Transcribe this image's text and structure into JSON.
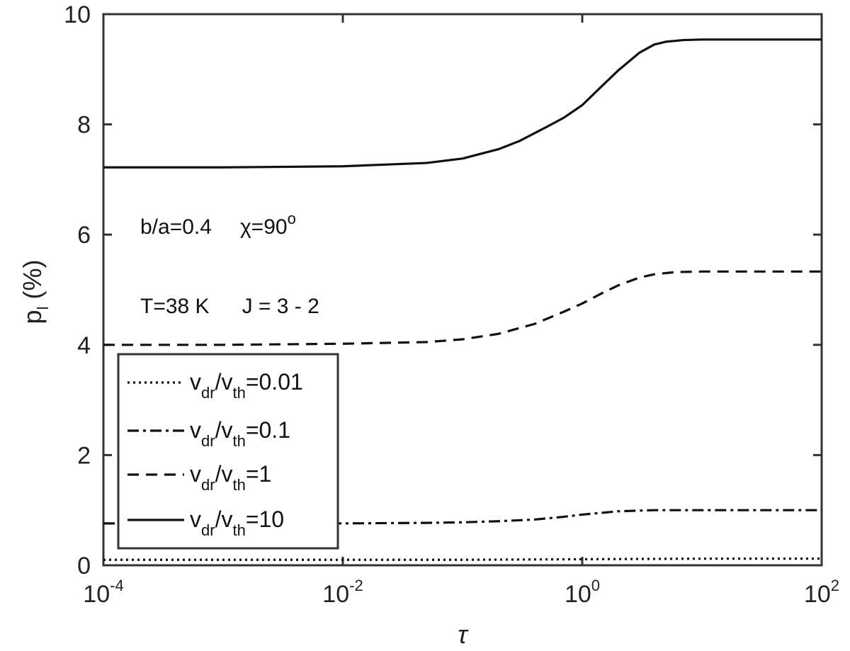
{
  "chart_data": {
    "type": "line",
    "xscale": "log",
    "xlim": [
      0.0001,
      100
    ],
    "ylim": [
      0,
      10
    ],
    "xlabel": "τ",
    "ylabel": "p",
    "ylabel_sub": "l",
    "ylabel_unit": "(%)",
    "grid": false,
    "x_ticks": [
      {
        "base": "10",
        "exp": "-4",
        "value": 0.0001
      },
      {
        "base": "10",
        "exp": "-2",
        "value": 0.01
      },
      {
        "base": "10",
        "exp": "0",
        "value": 1
      },
      {
        "base": "10",
        "exp": "2",
        "value": 100
      }
    ],
    "y_ticks": [
      "0",
      "2",
      "4",
      "6",
      "8",
      "10"
    ],
    "annotations": [
      {
        "parts": [
          "b/a=0.4",
          "χ=90",
          "o"
        ]
      },
      {
        "parts": [
          "T=38 K",
          "J = 3 - 2"
        ]
      }
    ],
    "legend": {
      "placement": "lower-left",
      "entries": [
        {
          "v": "v",
          "dr": "dr",
          "slash": "/v",
          "th": "th",
          "eq": "=0.01",
          "style": "dotted"
        },
        {
          "v": "v",
          "dr": "dr",
          "slash": "/v",
          "th": "th",
          "eq": "=0.1",
          "style": "dashdot"
        },
        {
          "v": "v",
          "dr": "dr",
          "slash": "/v",
          "th": "th",
          "eq": "=1",
          "style": "dashed"
        },
        {
          "v": "v",
          "dr": "dr",
          "slash": "/v",
          "th": "th",
          "eq": "=10",
          "style": "solid"
        }
      ]
    },
    "series": [
      {
        "style": "dotted",
        "x": [
          0.0001,
          0.001,
          0.01,
          0.1,
          0.3,
          1,
          3,
          10,
          100
        ],
        "y": [
          0.1,
          0.1,
          0.1,
          0.1,
          0.105,
          0.11,
          0.115,
          0.12,
          0.12
        ]
      },
      {
        "style": "dashdot",
        "x": [
          0.0001,
          0.001,
          0.01,
          0.05,
          0.1,
          0.2,
          0.4,
          0.7,
          1,
          2,
          4,
          7,
          10,
          100
        ],
        "y": [
          0.76,
          0.76,
          0.76,
          0.77,
          0.78,
          0.8,
          0.83,
          0.88,
          0.92,
          0.98,
          1.0,
          1.0,
          1.0,
          1.0
        ]
      },
      {
        "style": "dashed",
        "x": [
          0.0001,
          0.001,
          0.01,
          0.05,
          0.1,
          0.2,
          0.4,
          0.7,
          1,
          1.5,
          2,
          3,
          4,
          6,
          10,
          100
        ],
        "y": [
          4.0,
          4.0,
          4.02,
          4.05,
          4.1,
          4.2,
          4.38,
          4.6,
          4.75,
          4.95,
          5.08,
          5.22,
          5.28,
          5.32,
          5.33,
          5.33
        ]
      },
      {
        "style": "solid",
        "x": [
          0.0001,
          0.001,
          0.01,
          0.05,
          0.1,
          0.2,
          0.3,
          0.5,
          0.7,
          1,
          1.5,
          2,
          3,
          4,
          5,
          7,
          10,
          100
        ],
        "y": [
          7.22,
          7.22,
          7.24,
          7.3,
          7.38,
          7.55,
          7.7,
          7.95,
          8.12,
          8.35,
          8.72,
          8.98,
          9.3,
          9.45,
          9.5,
          9.53,
          9.54,
          9.54
        ]
      }
    ]
  }
}
